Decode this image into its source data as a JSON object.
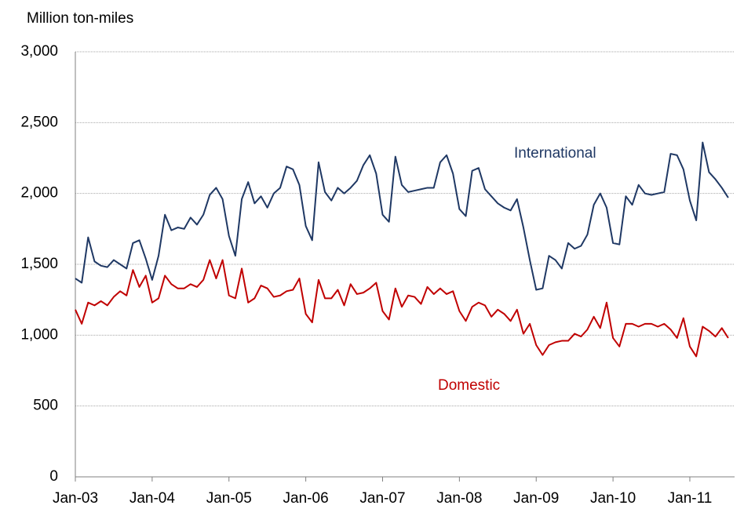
{
  "chart_data": {
    "type": "line",
    "y_axis_label": "Million ton-miles",
    "categories": [
      "Jan-03",
      null,
      null,
      null,
      null,
      null,
      null,
      null,
      null,
      null,
      null,
      null,
      "Jan-04",
      null,
      null,
      null,
      null,
      null,
      null,
      null,
      null,
      null,
      null,
      null,
      "Jan-05",
      null,
      null,
      null,
      null,
      null,
      null,
      null,
      null,
      null,
      null,
      null,
      "Jan-06",
      null,
      null,
      null,
      null,
      null,
      null,
      null,
      null,
      null,
      null,
      null,
      "Jan-07",
      null,
      null,
      null,
      null,
      null,
      null,
      null,
      null,
      null,
      null,
      null,
      "Jan-08",
      null,
      null,
      null,
      null,
      null,
      null,
      null,
      null,
      null,
      null,
      null,
      "Jan-09",
      null,
      null,
      null,
      null,
      null,
      null,
      null,
      null,
      null,
      null,
      null,
      "Jan-10",
      null,
      null,
      null,
      null,
      null,
      null,
      null,
      null,
      null,
      null,
      null,
      "Jan-11",
      null,
      null,
      null,
      null,
      null,
      null
    ],
    "series": [
      {
        "name": "International",
        "color": "#1f3864",
        "values": [
          1400,
          1370,
          1690,
          1520,
          1490,
          1480,
          1530,
          1500,
          1470,
          1650,
          1670,
          1540,
          1390,
          1560,
          1850,
          1740,
          1760,
          1750,
          1830,
          1780,
          1850,
          1990,
          2040,
          1960,
          1700,
          1560,
          1960,
          2080,
          1930,
          1980,
          1900,
          2000,
          2040,
          2190,
          2170,
          2060,
          1770,
          1670,
          2220,
          2010,
          1950,
          2040,
          2000,
          2040,
          2090,
          2200,
          2270,
          2140,
          1850,
          1800,
          2260,
          2060,
          2010,
          2020,
          2030,
          2040,
          2040,
          2220,
          2270,
          2140,
          1890,
          1840,
          2160,
          2180,
          2030,
          1980,
          1930,
          1900,
          1880,
          1960,
          1760,
          1530,
          1320,
          1330,
          1560,
          1530,
          1470,
          1650,
          1610,
          1630,
          1710,
          1920,
          2000,
          1900,
          1650,
          1640,
          1980,
          1920,
          2060,
          2000,
          1990,
          2000,
          2010,
          2280,
          2270,
          2170,
          1950,
          1810,
          2360,
          2150,
          2100,
          2040,
          1970
        ]
      },
      {
        "name": "Domestic",
        "color": "#c00000",
        "values": [
          1180,
          1080,
          1230,
          1210,
          1240,
          1210,
          1270,
          1310,
          1280,
          1460,
          1340,
          1420,
          1230,
          1260,
          1420,
          1360,
          1330,
          1330,
          1360,
          1340,
          1390,
          1530,
          1400,
          1530,
          1280,
          1260,
          1470,
          1230,
          1260,
          1350,
          1330,
          1270,
          1280,
          1310,
          1320,
          1400,
          1150,
          1090,
          1390,
          1260,
          1260,
          1320,
          1210,
          1360,
          1290,
          1300,
          1330,
          1370,
          1170,
          1110,
          1330,
          1200,
          1280,
          1270,
          1220,
          1340,
          1290,
          1330,
          1290,
          1310,
          1170,
          1100,
          1200,
          1230,
          1210,
          1130,
          1180,
          1150,
          1100,
          1180,
          1010,
          1080,
          930,
          860,
          930,
          950,
          960,
          960,
          1010,
          990,
          1040,
          1130,
          1050,
          1230,
          980,
          920,
          1080,
          1080,
          1060,
          1080,
          1080,
          1060,
          1080,
          1040,
          980,
          1120,
          920,
          850,
          1060,
          1030,
          990,
          1050,
          980
        ]
      }
    ],
    "ylim": [
      0,
      3000
    ],
    "yticks": [
      0,
      500,
      {
        "value": 1000,
        "label": "1,000"
      },
      {
        "value": 1500,
        "label": "1,500"
      },
      {
        "value": 2000,
        "label": "2,000"
      },
      {
        "value": 2500,
        "label": "2,500"
      },
      {
        "value": 3000,
        "label": "3,000"
      }
    ],
    "grid": true
  }
}
